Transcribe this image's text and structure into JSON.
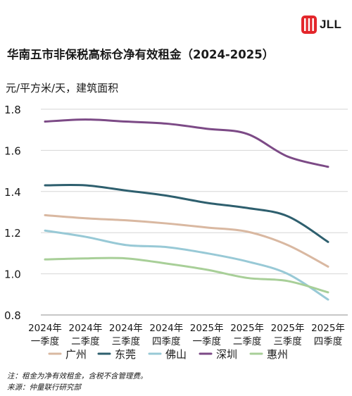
{
  "brand": {
    "logo_text": "JLL",
    "logo_color": "#e3262b"
  },
  "title": "华南五市非保税高标仓净有效租金（2024-2025）",
  "unit_label": "元/平方米/天，建筑面积",
  "notes": [
    "注：租金为净有效租金，含税不含管理费。",
    "来源：仲量联行研究部"
  ],
  "chart_data": {
    "type": "line",
    "categories": [
      [
        "2024年",
        "一季度"
      ],
      [
        "2024年",
        "二季度"
      ],
      [
        "2024年",
        "三季度"
      ],
      [
        "2024年",
        "四季度"
      ],
      [
        "2025年",
        "一季度"
      ],
      [
        "2025年",
        "二季度"
      ],
      [
        "2025年",
        "三季度"
      ],
      [
        "2025年",
        "四季度"
      ]
    ],
    "ylim": [
      0.8,
      1.8
    ],
    "yticks": [
      "0.8",
      "1.0",
      "1.2",
      "1.4",
      "1.6",
      "1.8"
    ],
    "grid": true,
    "legend_position": "bottom",
    "series": [
      {
        "name": "广州",
        "color": "#d9b8a1",
        "values": [
          1.285,
          1.27,
          1.26,
          1.245,
          1.225,
          1.205,
          1.14,
          1.035
        ]
      },
      {
        "name": "东莞",
        "color": "#2e5f6e",
        "values": [
          1.43,
          1.43,
          1.405,
          1.38,
          1.345,
          1.32,
          1.28,
          1.155
        ]
      },
      {
        "name": "佛山",
        "color": "#98c9d6",
        "values": [
          1.21,
          1.18,
          1.14,
          1.13,
          1.1,
          1.06,
          1.0,
          0.875
        ]
      },
      {
        "name": "深圳",
        "color": "#7c4a86",
        "values": [
          1.74,
          1.75,
          1.74,
          1.73,
          1.705,
          1.68,
          1.57,
          1.52
        ]
      },
      {
        "name": "惠州",
        "color": "#a8cf98",
        "values": [
          1.07,
          1.075,
          1.075,
          1.05,
          1.02,
          0.98,
          0.965,
          0.91
        ]
      }
    ]
  }
}
